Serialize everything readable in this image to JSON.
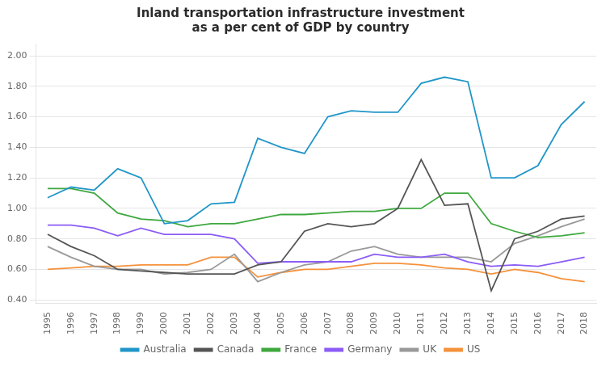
{
  "chart_data": {
    "type": "line",
    "title": "Inland transportation infrastructure investment\nas a per cent of GDP by country",
    "categories": [
      "1995",
      "1996",
      "1997",
      "1998",
      "1999",
      "2000",
      "2001",
      "2002",
      "2003",
      "2004",
      "2005",
      "2006",
      "2007",
      "2008",
      "2009",
      "2010",
      "2011",
      "2012",
      "2013",
      "2014",
      "2015",
      "2016",
      "2017",
      "2018"
    ],
    "series": [
      {
        "name": "Australia",
        "color": "#2196C8",
        "values": [
          1.07,
          1.14,
          1.12,
          1.26,
          1.2,
          0.9,
          0.92,
          1.03,
          1.04,
          1.46,
          1.4,
          1.36,
          1.6,
          1.64,
          1.63,
          1.63,
          1.82,
          1.86,
          1.83,
          1.2,
          1.2,
          1.28,
          1.55,
          1.7
        ]
      },
      {
        "name": "Canada",
        "color": "#555555",
        "values": [
          0.83,
          0.75,
          0.69,
          0.6,
          0.59,
          0.58,
          0.57,
          0.57,
          0.57,
          0.63,
          0.65,
          0.85,
          0.9,
          0.88,
          0.9,
          1.0,
          1.32,
          1.02,
          1.03,
          0.46,
          0.8,
          0.85,
          0.93,
          0.95
        ]
      },
      {
        "name": "France",
        "color": "#3EA83E",
        "values": [
          1.13,
          1.13,
          1.1,
          0.97,
          0.93,
          0.92,
          0.88,
          0.9,
          0.9,
          0.93,
          0.96,
          0.96,
          0.97,
          0.98,
          0.98,
          1.0,
          1.0,
          1.1,
          1.1,
          0.9,
          0.85,
          0.81,
          0.82,
          0.84
        ]
      },
      {
        "name": "Germany",
        "color": "#8B5CF6",
        "values": [
          0.89,
          0.89,
          0.87,
          0.82,
          0.87,
          0.83,
          0.83,
          0.83,
          0.8,
          0.64,
          0.65,
          0.65,
          0.65,
          0.65,
          0.7,
          0.68,
          0.68,
          0.7,
          0.65,
          0.62,
          0.63,
          0.62,
          0.65,
          0.68
        ]
      },
      {
        "name": "UK",
        "color": "#999999",
        "values": [
          0.75,
          0.68,
          0.62,
          0.6,
          0.6,
          0.57,
          0.58,
          0.6,
          0.7,
          0.52,
          0.58,
          0.63,
          0.65,
          0.72,
          0.75,
          0.7,
          0.68,
          0.68,
          0.68,
          0.65,
          0.77,
          0.82,
          0.88,
          0.93
        ]
      },
      {
        "name": "US",
        "color": "#F5913B",
        "values": [
          0.6,
          0.61,
          0.62,
          0.62,
          0.63,
          0.63,
          0.63,
          0.68,
          0.68,
          0.55,
          0.58,
          0.6,
          0.6,
          0.62,
          0.64,
          0.64,
          0.63,
          0.61,
          0.6,
          0.57,
          0.6,
          0.58,
          0.54,
          0.52
        ]
      }
    ],
    "ylim": [
      0.38,
      2.08
    ],
    "yticks": [
      {
        "value": 0.4,
        "label": "0.40"
      },
      {
        "value": 0.6,
        "label": "0.60"
      },
      {
        "value": 0.8,
        "label": "0.80"
      },
      {
        "value": 1.0,
        "label": "1.00"
      },
      {
        "value": 1.2,
        "label": "1.20"
      },
      {
        "value": 1.4,
        "label": "1.40"
      },
      {
        "value": 1.6,
        "label": "1.60"
      },
      {
        "value": 1.8,
        "label": "1.80"
      },
      {
        "value": 2.0,
        "label": "2.00"
      }
    ],
    "grid": "y",
    "legend": "bottom"
  }
}
